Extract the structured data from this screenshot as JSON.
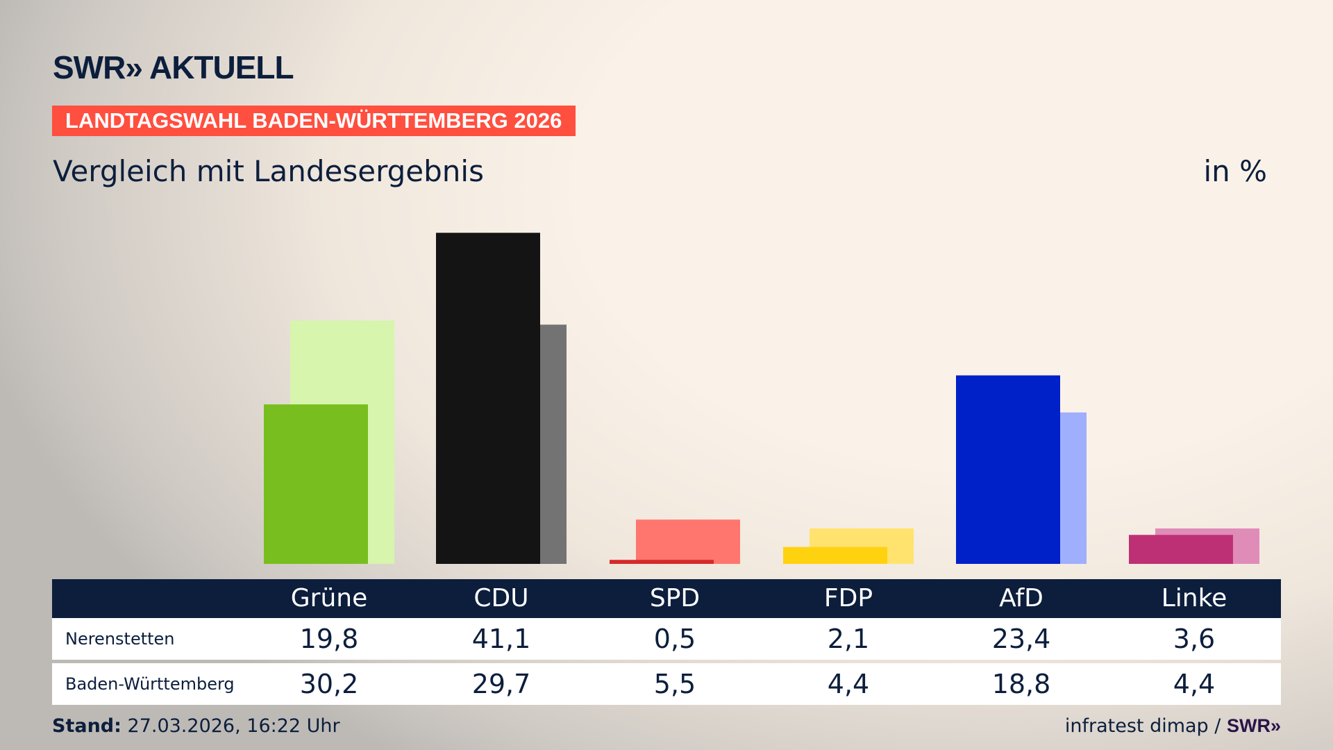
{
  "logo": "SWR» AKTUELL",
  "banner": "LANDTAGSWAHL BADEN-WÜRTTEMBERG 2026",
  "subtitle": "Vergleich mit Landesergebnis",
  "unit": "in %",
  "footer": {
    "stand_label": "Stand:",
    "stand_value": "27.03.2026, 16:22 Uhr",
    "source": "infratest dimap /",
    "source_logo": "SWR»"
  },
  "chart_data": {
    "type": "bar",
    "categories": [
      "Grüne",
      "CDU",
      "SPD",
      "FDP",
      "AfD",
      "Linke"
    ],
    "series": [
      {
        "name": "Nerenstetten",
        "values": [
          19.8,
          41.1,
          0.5,
          2.1,
          23.4,
          3.6
        ],
        "colors": [
          "#78be1e",
          "#141414",
          "#d42a2a",
          "#ffd20f",
          "#0020c8",
          "#be3075"
        ]
      },
      {
        "name": "Baden-Württemberg",
        "values": [
          30.2,
          29.7,
          5.5,
          4.4,
          18.8,
          4.4
        ],
        "colors": [
          "#d7f5ad",
          "#737373",
          "#ff766e",
          "#ffe36e",
          "#a0affc",
          "#e08cb8"
        ]
      }
    ],
    "labels": [
      "19,8",
      "41,1",
      "0,5",
      "2,1",
      "23,4",
      "3,6"
    ],
    "labels2": [
      "30,2",
      "29,7",
      "5,5",
      "4,4",
      "18,8",
      "4,4"
    ]
  }
}
